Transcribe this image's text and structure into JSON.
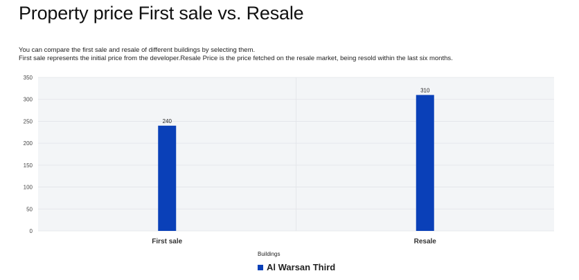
{
  "page": {
    "title": "Property price First sale vs. Resale",
    "description_line1": "You can compare the first sale and resale of different buildings by selecting them.",
    "description_line2": "First sale represents the initial price from the developer.Resale Price is the price fetched on the resale market, being resold within the last six months."
  },
  "chart_data": {
    "type": "bar",
    "categories": [
      "First sale",
      "Resale"
    ],
    "series": [
      {
        "name": "Al Warsan Third",
        "values": [
          240,
          310
        ],
        "color": "#0a40b8"
      }
    ],
    "data_labels": [
      "240",
      "310"
    ],
    "y_ticks": [
      "0",
      "50",
      "100",
      "150",
      "200",
      "250",
      "300",
      "350"
    ],
    "ylim": [
      0,
      350
    ],
    "grid": true,
    "legend_title": "Buildings",
    "legend_position": "bottom-center",
    "plot_background": "#f3f5f7"
  }
}
